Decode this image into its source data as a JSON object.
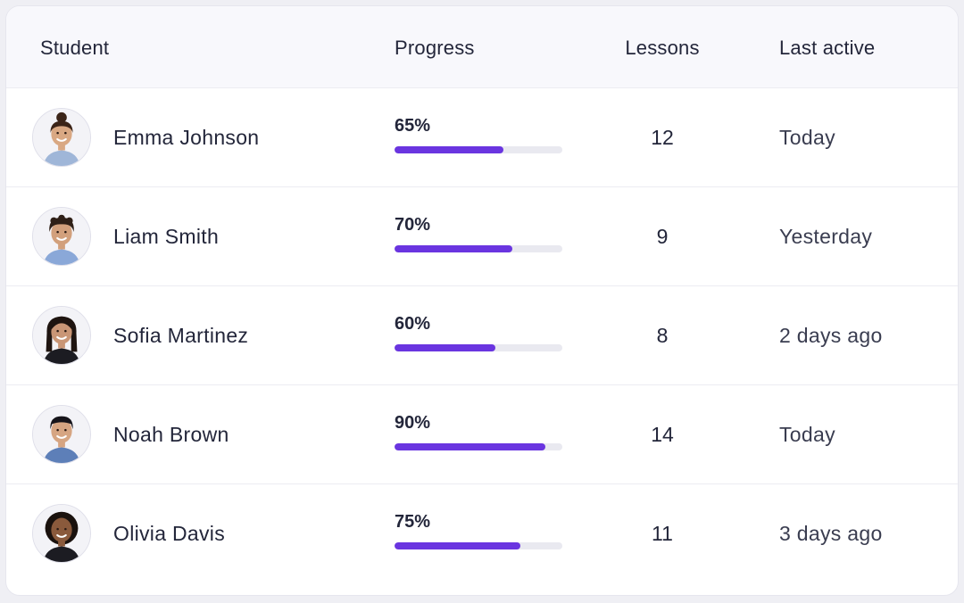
{
  "table": {
    "headers": {
      "student": "Student",
      "progress": "Progress",
      "lessons": "Lessons",
      "last_active": "Last active"
    },
    "rows": [
      {
        "name": "Emma Johnson",
        "progress_label": "65%",
        "progress": 65,
        "lessons": "12",
        "last_active": "Today",
        "avatar": {
          "skin": "#d9a883",
          "hair": "#3b2418",
          "shirt": "#9fb6d8",
          "hair_style": "bun"
        }
      },
      {
        "name": "Liam Smith",
        "progress_label": "70%",
        "progress": 70,
        "lessons": "9",
        "last_active": "Yesterday",
        "avatar": {
          "skin": "#d2a07c",
          "hair": "#2f2017",
          "shirt": "#8aa8d8",
          "hair_style": "curly"
        }
      },
      {
        "name": "Sofia Martinez",
        "progress_label": "60%",
        "progress": 60,
        "lessons": "8",
        "last_active": "2 days ago",
        "avatar": {
          "skin": "#c99676",
          "hair": "#1e1410",
          "shirt": "#1c1c22",
          "hair_style": "long"
        }
      },
      {
        "name": "Noah Brown",
        "progress_label": "90%",
        "progress": 90,
        "lessons": "14",
        "last_active": "Today",
        "avatar": {
          "skin": "#d6a582",
          "hair": "#16141a",
          "shirt": "#5d7fb8",
          "hair_style": "short"
        }
      },
      {
        "name": "Olivia Davis",
        "progress_label": "75%",
        "progress": 75,
        "lessons": "11",
        "last_active": "3 days ago",
        "avatar": {
          "skin": "#8a5a3c",
          "hair": "#1a120e",
          "shirt": "#1c1c22",
          "hair_style": "afro"
        }
      }
    ]
  },
  "colors": {
    "accent": "#6a35e0",
    "track": "#e9e9f0",
    "header_bg": "#f8f8fc"
  }
}
